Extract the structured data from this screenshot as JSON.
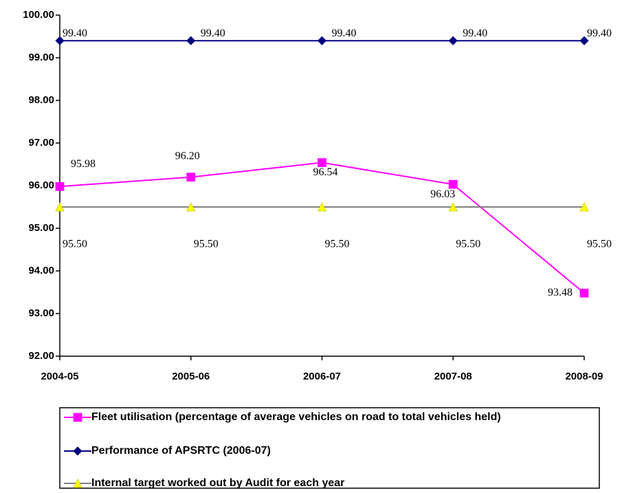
{
  "chart_data": {
    "type": "line",
    "categories": [
      "2004-05",
      "2005-06",
      "2006-07",
      "2007-08",
      "2008-09"
    ],
    "ylim": [
      92,
      100
    ],
    "yticks": [
      {
        "value": 92,
        "label": "92.00"
      },
      {
        "value": 93,
        "label": "93.00"
      },
      {
        "value": 94,
        "label": "94.00"
      },
      {
        "value": 95,
        "label": "95.00"
      },
      {
        "value": 96,
        "label": "96.00"
      },
      {
        "value": 97,
        "label": "97.00"
      },
      {
        "value": 98,
        "label": "98.00"
      },
      {
        "value": 99,
        "label": "99.00"
      },
      {
        "value": 100,
        "label": "100.00"
      }
    ],
    "series": [
      {
        "name": "Fleet utilisation (percentage of average vehicles on road to total vehicles held)",
        "color": "#FF00FF",
        "marker": "square",
        "marker_color": "#FF00FF",
        "values": [
          95.98,
          96.2,
          96.54,
          96.03,
          93.48
        ],
        "value_labels": [
          "95.98",
          "96.20",
          "96.54",
          "96.03",
          "93.48"
        ]
      },
      {
        "name": "Performance of APSRTC (2006-07)",
        "color": "#000080",
        "marker": "diamond",
        "marker_color": "#000080",
        "values": [
          99.4,
          99.4,
          99.4,
          99.4,
          99.4
        ],
        "value_labels": [
          "99.40",
          "99.40",
          "99.40",
          "99.40",
          "99.40"
        ]
      },
      {
        "name": "Internal target worked out by Audit for each year",
        "color": "#808080",
        "marker": "triangle",
        "marker_color": "#FFFF00",
        "values": [
          95.5,
          95.5,
          95.5,
          95.5,
          95.5
        ],
        "value_labels": [
          "95.50",
          "95.50",
          "95.50",
          "95.50",
          "95.50"
        ]
      }
    ]
  }
}
